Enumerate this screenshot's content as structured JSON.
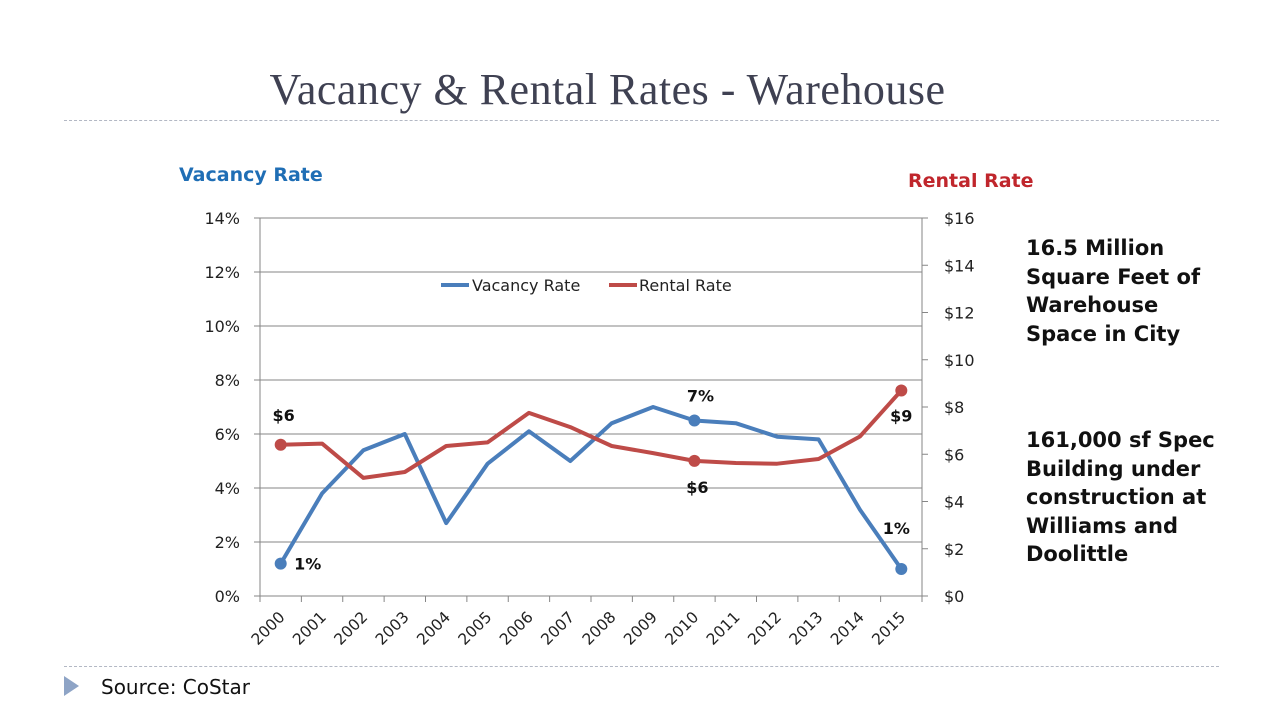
{
  "slide": {
    "title": "Vacancy & Rental Rates - Warehouse",
    "note1": "16.5 Million Square Feet of Warehouse Space in City",
    "note2": "161,000 sf Spec Building under construction at Williams and Doolittle",
    "source": "Source:  CoStar"
  },
  "colors": {
    "vacancy": "#4a7ebb",
    "rental": "#be4b48",
    "title": "#3f4152",
    "left_axis_title": "#1f6eb5",
    "right_axis_title": "#c0262c"
  },
  "chart_data": {
    "type": "line",
    "title": "",
    "left_axis_title": "Vacancy Rate",
    "right_axis_title": "Rental Rate",
    "categories": [
      "2000",
      "2001",
      "2002",
      "2003",
      "2004",
      "2005",
      "2006",
      "2007",
      "2008",
      "2009",
      "2010",
      "2011",
      "2012",
      "2013",
      "2014",
      "2015"
    ],
    "y_left": {
      "min": 0,
      "max": 14,
      "ticks": [
        "0%",
        "2%",
        "4%",
        "6%",
        "8%",
        "10%",
        "12%",
        "14%"
      ]
    },
    "y_right": {
      "min": 0,
      "max": 16,
      "ticks": [
        "$0",
        "$2",
        "$4",
        "$6",
        "$8",
        "$10",
        "$12",
        "$14",
        "$16"
      ]
    },
    "grid": true,
    "legend": "top-center",
    "series": [
      {
        "name": "Vacancy Rate",
        "axis": "left",
        "values": [
          1.2,
          3.8,
          5.4,
          6.0,
          2.7,
          4.9,
          6.1,
          5.0,
          6.4,
          7.0,
          6.5,
          6.4,
          5.9,
          5.8,
          3.2,
          1.0
        ],
        "markers": [
          0,
          10,
          15
        ]
      },
      {
        "name": "Rental Rate",
        "axis": "right",
        "values": [
          6.4,
          6.45,
          5.0,
          5.25,
          6.35,
          6.5,
          7.75,
          7.15,
          6.35,
          6.05,
          5.72,
          5.63,
          5.6,
          5.8,
          6.75,
          8.7
        ],
        "markers": [
          0,
          10,
          15
        ]
      }
    ],
    "annotations": [
      {
        "series": "Vacancy Rate",
        "index": 0,
        "text": "1%"
      },
      {
        "series": "Vacancy Rate",
        "index": 10,
        "text": "7%"
      },
      {
        "series": "Vacancy Rate",
        "index": 15,
        "text": "1%"
      },
      {
        "series": "Rental Rate",
        "index": 0,
        "text": "$6"
      },
      {
        "series": "Rental Rate",
        "index": 10,
        "text": "$6"
      },
      {
        "series": "Rental Rate",
        "index": 15,
        "text": "$9"
      }
    ]
  }
}
